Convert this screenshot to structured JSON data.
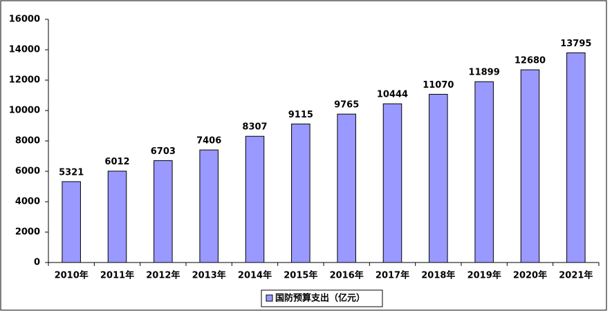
{
  "chart_data": {
    "type": "bar",
    "categories": [
      "2010年",
      "2011年",
      "2012年",
      "2013年",
      "2014年",
      "2015年",
      "2016年",
      "2017年",
      "2018年",
      "2019年",
      "2020年",
      "2021年"
    ],
    "series": [
      {
        "name": "国防预算支出（亿元）",
        "color": "#9999ff",
        "values": [
          5321,
          6012,
          6703,
          7406,
          8307,
          9115,
          9765,
          10444,
          11070,
          11899,
          12680,
          13795
        ]
      }
    ],
    "ylim": [
      0,
      16000
    ],
    "yticks": [
      0,
      2000,
      4000,
      6000,
      8000,
      10000,
      12000,
      14000,
      16000
    ],
    "grid": false,
    "legend": "bottom"
  }
}
